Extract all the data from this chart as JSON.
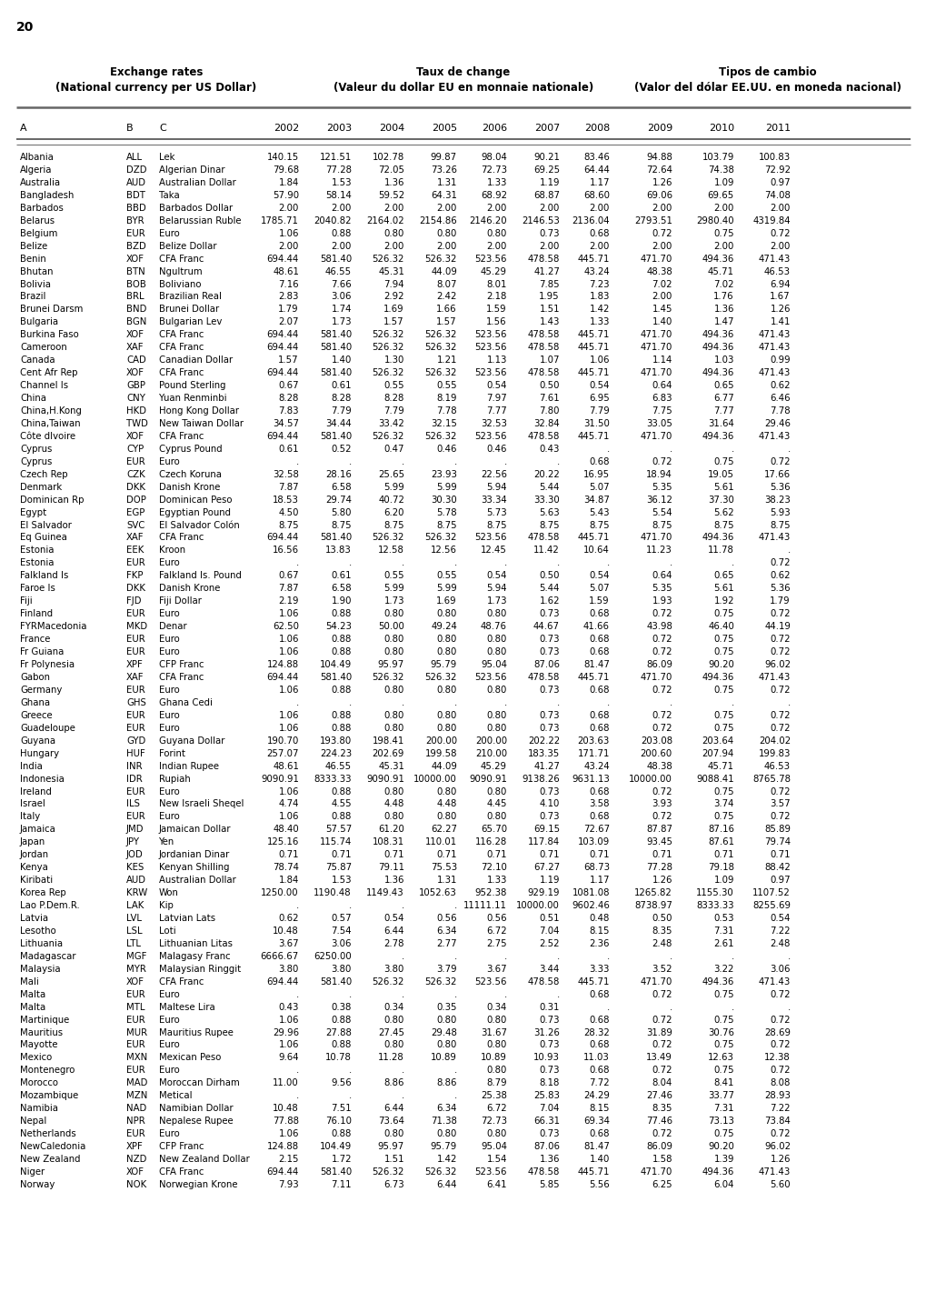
{
  "page_number": "20",
  "title_left_line1": "Exchange rates",
  "title_left_line2": "(National currency per US Dollar)",
  "title_center_line1": "Taux de change",
  "title_center_line2": "(Valeur du dollar EU en monnaie nationale)",
  "title_right_line1": "Tipos de cambio",
  "title_right_line2": "(Valor del dólar EE.UU. en moneda nacional)",
  "columns": [
    "A",
    "B",
    "C",
    "2002",
    "2003",
    "2004",
    "2005",
    "2006",
    "2007",
    "2008",
    "2009",
    "2010",
    "2011"
  ],
  "rows": [
    [
      "Albania",
      "ALL",
      "Lek",
      "140.15",
      "121.51",
      "102.78",
      "99.87",
      "98.04",
      "90.21",
      "83.46",
      "94.88",
      "103.79",
      "100.83"
    ],
    [
      "Algeria",
      "DZD",
      "Algerian Dinar",
      "79.68",
      "77.28",
      "72.05",
      "73.26",
      "72.73",
      "69.25",
      "64.44",
      "72.64",
      "74.38",
      "72.92"
    ],
    [
      "Australia",
      "AUD",
      "Australian Dollar",
      "1.84",
      "1.53",
      "1.36",
      "1.31",
      "1.33",
      "1.19",
      "1.17",
      "1.26",
      "1.09",
      "0.97"
    ],
    [
      "Bangladesh",
      "BDT",
      "Taka",
      "57.90",
      "58.14",
      "59.52",
      "64.31",
      "68.92",
      "68.87",
      "68.60",
      "69.06",
      "69.65",
      "74.08"
    ],
    [
      "Barbados",
      "BBD",
      "Barbados Dollar",
      "2.00",
      "2.00",
      "2.00",
      "2.00",
      "2.00",
      "2.00",
      "2.00",
      "2.00",
      "2.00",
      "2.00"
    ],
    [
      "Belarus",
      "BYR",
      "Belarussian Ruble",
      "1785.71",
      "2040.82",
      "2164.02",
      "2154.86",
      "2146.20",
      "2146.53",
      "2136.04",
      "2793.51",
      "2980.40",
      "4319.84"
    ],
    [
      "Belgium",
      "EUR",
      "Euro",
      "1.06",
      "0.88",
      "0.80",
      "0.80",
      "0.80",
      "0.73",
      "0.68",
      "0.72",
      "0.75",
      "0.72"
    ],
    [
      "Belize",
      "BZD",
      "Belize Dollar",
      "2.00",
      "2.00",
      "2.00",
      "2.00",
      "2.00",
      "2.00",
      "2.00",
      "2.00",
      "2.00",
      "2.00"
    ],
    [
      "Benin",
      "XOF",
      "CFA Franc",
      "694.44",
      "581.40",
      "526.32",
      "526.32",
      "523.56",
      "478.58",
      "445.71",
      "471.70",
      "494.36",
      "471.43"
    ],
    [
      "Bhutan",
      "BTN",
      "Ngultrum",
      "48.61",
      "46.55",
      "45.31",
      "44.09",
      "45.29",
      "41.27",
      "43.24",
      "48.38",
      "45.71",
      "46.53"
    ],
    [
      "Bolivia",
      "BOB",
      "Boliviano",
      "7.16",
      "7.66",
      "7.94",
      "8.07",
      "8.01",
      "7.85",
      "7.23",
      "7.02",
      "7.02",
      "6.94"
    ],
    [
      "Brazil",
      "BRL",
      "Brazilian Real",
      "2.83",
      "3.06",
      "2.92",
      "2.42",
      "2.18",
      "1.95",
      "1.83",
      "2.00",
      "1.76",
      "1.67"
    ],
    [
      "Brunei Darsm",
      "BND",
      "Brunei Dollar",
      "1.79",
      "1.74",
      "1.69",
      "1.66",
      "1.59",
      "1.51",
      "1.42",
      "1.45",
      "1.36",
      "1.26"
    ],
    [
      "Bulgaria",
      "BGN",
      "Bulgarian Lev",
      "2.07",
      "1.73",
      "1.57",
      "1.57",
      "1.56",
      "1.43",
      "1.33",
      "1.40",
      "1.47",
      "1.41"
    ],
    [
      "Burkina Faso",
      "XOF",
      "CFA Franc",
      "694.44",
      "581.40",
      "526.32",
      "526.32",
      "523.56",
      "478.58",
      "445.71",
      "471.70",
      "494.36",
      "471.43"
    ],
    [
      "Cameroon",
      "XAF",
      "CFA Franc",
      "694.44",
      "581.40",
      "526.32",
      "526.32",
      "523.56",
      "478.58",
      "445.71",
      "471.70",
      "494.36",
      "471.43"
    ],
    [
      "Canada",
      "CAD",
      "Canadian Dollar",
      "1.57",
      "1.40",
      "1.30",
      "1.21",
      "1.13",
      "1.07",
      "1.06",
      "1.14",
      "1.03",
      "0.99"
    ],
    [
      "Cent Afr Rep",
      "XOF",
      "CFA Franc",
      "694.44",
      "581.40",
      "526.32",
      "526.32",
      "523.56",
      "478.58",
      "445.71",
      "471.70",
      "494.36",
      "471.43"
    ],
    [
      "Channel Is",
      "GBP",
      "Pound Sterling",
      "0.67",
      "0.61",
      "0.55",
      "0.55",
      "0.54",
      "0.50",
      "0.54",
      "0.64",
      "0.65",
      "0.62"
    ],
    [
      "China",
      "CNY",
      "Yuan Renminbi",
      "8.28",
      "8.28",
      "8.28",
      "8.19",
      "7.97",
      "7.61",
      "6.95",
      "6.83",
      "6.77",
      "6.46"
    ],
    [
      "China,H.Kong",
      "HKD",
      "Hong Kong Dollar",
      "7.83",
      "7.79",
      "7.79",
      "7.78",
      "7.77",
      "7.80",
      "7.79",
      "7.75",
      "7.77",
      "7.78"
    ],
    [
      "China,Taiwan",
      "TWD",
      "New Taiwan Dollar",
      "34.57",
      "34.44",
      "33.42",
      "32.15",
      "32.53",
      "32.84",
      "31.50",
      "33.05",
      "31.64",
      "29.46"
    ],
    [
      "Côte dIvoire",
      "XOF",
      "CFA Franc",
      "694.44",
      "581.40",
      "526.32",
      "526.32",
      "523.56",
      "478.58",
      "445.71",
      "471.70",
      "494.36",
      "471.43"
    ],
    [
      "Cyprus",
      "CYP",
      "Cyprus Pound",
      "0.61",
      "0.52",
      "0.47",
      "0.46",
      "0.46",
      "0.43",
      "  .",
      "  .",
      "  .",
      "  ."
    ],
    [
      "Cyprus",
      "EUR",
      "Euro",
      "  .",
      "  .",
      "  .",
      "  .",
      "  .",
      "  .",
      "0.68",
      "0.72",
      "0.75",
      "0.72"
    ],
    [
      "Czech Rep",
      "CZK",
      "Czech Koruna",
      "32.58",
      "28.16",
      "25.65",
      "23.93",
      "22.56",
      "20.22",
      "16.95",
      "18.94",
      "19.05",
      "17.66"
    ],
    [
      "Denmark",
      "DKK",
      "Danish Krone",
      "7.87",
      "6.58",
      "5.99",
      "5.99",
      "5.94",
      "5.44",
      "5.07",
      "5.35",
      "5.61",
      "5.36"
    ],
    [
      "Dominican Rp",
      "DOP",
      "Dominican Peso",
      "18.53",
      "29.74",
      "40.72",
      "30.30",
      "33.34",
      "33.30",
      "34.87",
      "36.12",
      "37.30",
      "38.23"
    ],
    [
      "Egypt",
      "EGP",
      "Egyptian Pound",
      "4.50",
      "5.80",
      "6.20",
      "5.78",
      "5.73",
      "5.63",
      "5.43",
      "5.54",
      "5.62",
      "5.93"
    ],
    [
      "El Salvador",
      "SVC",
      "El Salvador Colón",
      "8.75",
      "8.75",
      "8.75",
      "8.75",
      "8.75",
      "8.75",
      "8.75",
      "8.75",
      "8.75",
      "8.75"
    ],
    [
      "Eq Guinea",
      "XAF",
      "CFA Franc",
      "694.44",
      "581.40",
      "526.32",
      "526.32",
      "523.56",
      "478.58",
      "445.71",
      "471.70",
      "494.36",
      "471.43"
    ],
    [
      "Estonia",
      "EEK",
      "Kroon",
      "16.56",
      "13.83",
      "12.58",
      "12.56",
      "12.45",
      "11.42",
      "10.64",
      "11.23",
      "11.78",
      "  ."
    ],
    [
      "Estonia",
      "EUR",
      "Euro",
      "  .",
      "  .",
      "  .",
      "  .",
      "  .",
      "  .",
      "  .",
      "  .",
      "  .",
      "0.72"
    ],
    [
      "Falkland Is",
      "FKP",
      "Falkland Is. Pound",
      "0.67",
      "0.61",
      "0.55",
      "0.55",
      "0.54",
      "0.50",
      "0.54",
      "0.64",
      "0.65",
      "0.62"
    ],
    [
      "Faroe Is",
      "DKK",
      "Danish Krone",
      "7.87",
      "6.58",
      "5.99",
      "5.99",
      "5.94",
      "5.44",
      "5.07",
      "5.35",
      "5.61",
      "5.36"
    ],
    [
      "Fiji",
      "FJD",
      "Fiji Dollar",
      "2.19",
      "1.90",
      "1.73",
      "1.69",
      "1.73",
      "1.62",
      "1.59",
      "1.93",
      "1.92",
      "1.79"
    ],
    [
      "Finland",
      "EUR",
      "Euro",
      "1.06",
      "0.88",
      "0.80",
      "0.80",
      "0.80",
      "0.73",
      "0.68",
      "0.72",
      "0.75",
      "0.72"
    ],
    [
      "FYRMacedonia",
      "MKD",
      "Denar",
      "62.50",
      "54.23",
      "50.00",
      "49.24",
      "48.76",
      "44.67",
      "41.66",
      "43.98",
      "46.40",
      "44.19"
    ],
    [
      "France",
      "EUR",
      "Euro",
      "1.06",
      "0.88",
      "0.80",
      "0.80",
      "0.80",
      "0.73",
      "0.68",
      "0.72",
      "0.75",
      "0.72"
    ],
    [
      "Fr Guiana",
      "EUR",
      "Euro",
      "1.06",
      "0.88",
      "0.80",
      "0.80",
      "0.80",
      "0.73",
      "0.68",
      "0.72",
      "0.75",
      "0.72"
    ],
    [
      "Fr Polynesia",
      "XPF",
      "CFP Franc",
      "124.88",
      "104.49",
      "95.97",
      "95.79",
      "95.04",
      "87.06",
      "81.47",
      "86.09",
      "90.20",
      "96.02"
    ],
    [
      "Gabon",
      "XAF",
      "CFA Franc",
      "694.44",
      "581.40",
      "526.32",
      "526.32",
      "523.56",
      "478.58",
      "445.71",
      "471.70",
      "494.36",
      "471.43"
    ],
    [
      "Germany",
      "EUR",
      "Euro",
      "1.06",
      "0.88",
      "0.80",
      "0.80",
      "0.80",
      "0.73",
      "0.68",
      "0.72",
      "0.75",
      "0.72"
    ],
    [
      "Ghana",
      "GHS",
      "Ghana Cedi",
      "  .",
      "  .",
      "  .",
      "  .",
      "  .",
      "  .",
      "  .",
      "  .",
      "  .",
      "  ."
    ],
    [
      "Greece",
      "EUR",
      "Euro",
      "1.06",
      "0.88",
      "0.80",
      "0.80",
      "0.80",
      "0.73",
      "0.68",
      "0.72",
      "0.75",
      "0.72"
    ],
    [
      "Guadeloupe",
      "EUR",
      "Euro",
      "1.06",
      "0.88",
      "0.80",
      "0.80",
      "0.80",
      "0.73",
      "0.68",
      "0.72",
      "0.75",
      "0.72"
    ],
    [
      "Guyana",
      "GYD",
      "Guyana Dollar",
      "190.70",
      "193.80",
      "198.41",
      "200.00",
      "200.00",
      "202.22",
      "203.63",
      "203.08",
      "203.64",
      "204.02"
    ],
    [
      "Hungary",
      "HUF",
      "Forint",
      "257.07",
      "224.23",
      "202.69",
      "199.58",
      "210.00",
      "183.35",
      "171.71",
      "200.60",
      "207.94",
      "199.83"
    ],
    [
      "India",
      "INR",
      "Indian Rupee",
      "48.61",
      "46.55",
      "45.31",
      "44.09",
      "45.29",
      "41.27",
      "43.24",
      "48.38",
      "45.71",
      "46.53"
    ],
    [
      "Indonesia",
      "IDR",
      "Rupiah",
      "9090.91",
      "8333.33",
      "9090.91",
      "10000.00",
      "9090.91",
      "9138.26",
      "9631.13",
      "10000.00",
      "9088.41",
      "8765.78"
    ],
    [
      "Ireland",
      "EUR",
      "Euro",
      "1.06",
      "0.88",
      "0.80",
      "0.80",
      "0.80",
      "0.73",
      "0.68",
      "0.72",
      "0.75",
      "0.72"
    ],
    [
      "Israel",
      "ILS",
      "New Israeli Sheqel",
      "4.74",
      "4.55",
      "4.48",
      "4.48",
      "4.45",
      "4.10",
      "3.58",
      "3.93",
      "3.74",
      "3.57"
    ],
    [
      "Italy",
      "EUR",
      "Euro",
      "1.06",
      "0.88",
      "0.80",
      "0.80",
      "0.80",
      "0.73",
      "0.68",
      "0.72",
      "0.75",
      "0.72"
    ],
    [
      "Jamaica",
      "JMD",
      "Jamaican Dollar",
      "48.40",
      "57.57",
      "61.20",
      "62.27",
      "65.70",
      "69.15",
      "72.67",
      "87.87",
      "87.16",
      "85.89"
    ],
    [
      "Japan",
      "JPY",
      "Yen",
      "125.16",
      "115.74",
      "108.31",
      "110.01",
      "116.28",
      "117.84",
      "103.09",
      "93.45",
      "87.61",
      "79.74"
    ],
    [
      "Jordan",
      "JOD",
      "Jordanian Dinar",
      "0.71",
      "0.71",
      "0.71",
      "0.71",
      "0.71",
      "0.71",
      "0.71",
      "0.71",
      "0.71",
      "0.71"
    ],
    [
      "Kenya",
      "KES",
      "Kenyan Shilling",
      "78.74",
      "75.87",
      "79.11",
      "75.53",
      "72.10",
      "67.27",
      "68.73",
      "77.28",
      "79.18",
      "88.42"
    ],
    [
      "Kiribati",
      "AUD",
      "Australian Dollar",
      "1.84",
      "1.53",
      "1.36",
      "1.31",
      "1.33",
      "1.19",
      "1.17",
      "1.26",
      "1.09",
      "0.97"
    ],
    [
      "Korea Rep",
      "KRW",
      "Won",
      "1250.00",
      "1190.48",
      "1149.43",
      "1052.63",
      "952.38",
      "929.19",
      "1081.08",
      "1265.82",
      "1155.30",
      "1107.52"
    ],
    [
      "Lao P.Dem.R.",
      "LAK",
      "Kip",
      "  .",
      "  .",
      "  .",
      "  .",
      "11111.11",
      "10000.00",
      "9602.46",
      "8738.97",
      "8333.33",
      "8255.69"
    ],
    [
      "Latvia",
      "LVL",
      "Latvian Lats",
      "0.62",
      "0.57",
      "0.54",
      "0.56",
      "0.56",
      "0.51",
      "0.48",
      "0.50",
      "0.53",
      "0.54"
    ],
    [
      "Lesotho",
      "LSL",
      "Loti",
      "10.48",
      "7.54",
      "6.44",
      "6.34",
      "6.72",
      "7.04",
      "8.15",
      "8.35",
      "7.31",
      "7.22"
    ],
    [
      "Lithuania",
      "LTL",
      "Lithuanian Litas",
      "3.67",
      "3.06",
      "2.78",
      "2.77",
      "2.75",
      "2.52",
      "2.36",
      "2.48",
      "2.61",
      "2.48"
    ],
    [
      "Madagascar",
      "MGF",
      "Malagasy Franc",
      "6666.67",
      "6250.00",
      "  .",
      "  .",
      "  .",
      "  .",
      "  .",
      "  .",
      "  .",
      "  ."
    ],
    [
      "Malaysia",
      "MYR",
      "Malaysian Ringgit",
      "3.80",
      "3.80",
      "3.80",
      "3.79",
      "3.67",
      "3.44",
      "3.33",
      "3.52",
      "3.22",
      "3.06"
    ],
    [
      "Mali",
      "XOF",
      "CFA Franc",
      "694.44",
      "581.40",
      "526.32",
      "526.32",
      "523.56",
      "478.58",
      "445.71",
      "471.70",
      "494.36",
      "471.43"
    ],
    [
      "Malta",
      "EUR",
      "Euro",
      "  .",
      "  .",
      "  .",
      "  .",
      "  .",
      "  .",
      "0.68",
      "0.72",
      "0.75",
      "0.72"
    ],
    [
      "Malta",
      "MTL",
      "Maltese Lira",
      "0.43",
      "0.38",
      "0.34",
      "0.35",
      "0.34",
      "0.31",
      "  .",
      "  .",
      "  .",
      "  ."
    ],
    [
      "Martinique",
      "EUR",
      "Euro",
      "1.06",
      "0.88",
      "0.80",
      "0.80",
      "0.80",
      "0.73",
      "0.68",
      "0.72",
      "0.75",
      "0.72"
    ],
    [
      "Mauritius",
      "MUR",
      "Mauritius Rupee",
      "29.96",
      "27.88",
      "27.45",
      "29.48",
      "31.67",
      "31.26",
      "28.32",
      "31.89",
      "30.76",
      "28.69"
    ],
    [
      "Mayotte",
      "EUR",
      "Euro",
      "1.06",
      "0.88",
      "0.80",
      "0.80",
      "0.80",
      "0.73",
      "0.68",
      "0.72",
      "0.75",
      "0.72"
    ],
    [
      "Mexico",
      "MXN",
      "Mexican Peso",
      "9.64",
      "10.78",
      "11.28",
      "10.89",
      "10.89",
      "10.93",
      "11.03",
      "13.49",
      "12.63",
      "12.38"
    ],
    [
      "Montenegro",
      "EUR",
      "Euro",
      "  .",
      "  .",
      "  .",
      "  .",
      "0.80",
      "0.73",
      "0.68",
      "0.72",
      "0.75",
      "0.72"
    ],
    [
      "Morocco",
      "MAD",
      "Moroccan Dirham",
      "11.00",
      "9.56",
      "8.86",
      "8.86",
      "8.79",
      "8.18",
      "7.72",
      "8.04",
      "8.41",
      "8.08"
    ],
    [
      "Mozambique",
      "MZN",
      "Metical",
      "  .",
      "  .",
      "  .",
      "  .",
      "25.38",
      "25.83",
      "24.29",
      "27.46",
      "33.77",
      "28.93"
    ],
    [
      "Namibia",
      "NAD",
      "Namibian Dollar",
      "10.48",
      "7.51",
      "6.44",
      "6.34",
      "6.72",
      "7.04",
      "8.15",
      "8.35",
      "7.31",
      "7.22"
    ],
    [
      "Nepal",
      "NPR",
      "Nepalese Rupee",
      "77.88",
      "76.10",
      "73.64",
      "71.38",
      "72.73",
      "66.31",
      "69.34",
      "77.46",
      "73.13",
      "73.84"
    ],
    [
      "Netherlands",
      "EUR",
      "Euro",
      "1.06",
      "0.88",
      "0.80",
      "0.80",
      "0.80",
      "0.73",
      "0.68",
      "0.72",
      "0.75",
      "0.72"
    ],
    [
      "NewCaledonia",
      "XPF",
      "CFP Franc",
      "124.88",
      "104.49",
      "95.97",
      "95.79",
      "95.04",
      "87.06",
      "81.47",
      "86.09",
      "90.20",
      "96.02"
    ],
    [
      "New Zealand",
      "NZD",
      "New Zealand Dollar",
      "2.15",
      "1.72",
      "1.51",
      "1.42",
      "1.54",
      "1.36",
      "1.40",
      "1.58",
      "1.39",
      "1.26"
    ],
    [
      "Niger",
      "XOF",
      "CFA Franc",
      "694.44",
      "581.40",
      "526.32",
      "526.32",
      "523.56",
      "478.58",
      "445.71",
      "471.70",
      "494.36",
      "471.43"
    ],
    [
      "Norway",
      "NOK",
      "Norwegian Krone",
      "7.93",
      "7.11",
      "6.73",
      "6.44",
      "6.41",
      "5.85",
      "5.56",
      "6.25",
      "6.04",
      "5.60"
    ]
  ]
}
